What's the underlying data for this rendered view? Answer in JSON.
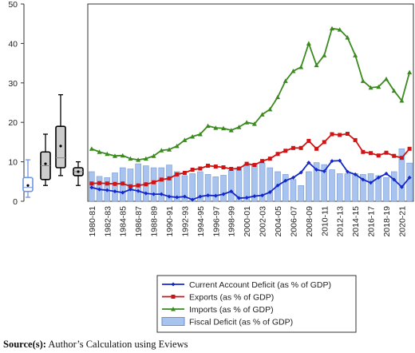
{
  "chart_data": {
    "type": "bar-line",
    "categories": [
      "1980-81",
      null,
      "1982-83",
      null,
      "1984-85",
      null,
      "1986-87",
      null,
      "1988-89",
      null,
      "1990-91",
      null,
      "1992-93",
      null,
      "1994-95",
      null,
      "1996-97",
      null,
      "1998-99",
      null,
      "2000-01",
      null,
      "2002-03",
      null,
      "2004-05",
      null,
      "2006-07",
      null,
      "2008-09",
      null,
      "2010-11",
      null,
      "2012-13",
      null,
      "2014-15",
      null,
      "2016-17",
      null,
      "2018-19",
      null,
      "2020-21",
      null
    ],
    "series": [
      {
        "name": "Current Account Deficit (as % of GDP)",
        "type": "line",
        "marker": "diamond",
        "color": "#1428c8",
        "values": [
          3.5,
          3,
          2.8,
          2.5,
          2.2,
          3,
          2.6,
          2,
          1.8,
          1.8,
          1.2,
          1,
          1.2,
          0.4,
          1.2,
          1.5,
          1.4,
          1.8,
          2.5,
          0.8,
          0.9,
          1.3,
          1.5,
          2.3,
          4,
          5.2,
          6,
          7.3,
          9.8,
          8,
          7.6,
          10.2,
          10.3,
          7.5,
          6.8,
          5.5,
          4.7,
          6,
          7,
          5.5,
          3.6,
          6
        ]
      },
      {
        "name": "Exports (as % of GDP)",
        "type": "line",
        "marker": "square",
        "color": "#d01414",
        "values": [
          4.5,
          4.6,
          4.5,
          4.4,
          4.5,
          3.8,
          4,
          4.3,
          4.8,
          5.5,
          5.8,
          6.8,
          7.2,
          8,
          8.3,
          9,
          8.8,
          8.6,
          8.2,
          8.3,
          9.5,
          9.2,
          10.2,
          10.8,
          12,
          12.8,
          13.5,
          13.5,
          15.3,
          13.3,
          15,
          17,
          16.8,
          17.1,
          15.5,
          12.5,
          12.2,
          11.6,
          12.3,
          11.5,
          11,
          13.3
        ]
      },
      {
        "name": "Imports (as % of GDP)",
        "type": "line",
        "marker": "triangle",
        "color": "#3a8a1e",
        "values": [
          13.3,
          12.5,
          12,
          11.5,
          11.6,
          10.8,
          10.5,
          10.8,
          11.5,
          12.9,
          13.1,
          14,
          15.5,
          16.4,
          17,
          19.1,
          18.6,
          18.5,
          18,
          18.8,
          20,
          19.6,
          22,
          23.3,
          26.4,
          30.5,
          33,
          34,
          40,
          34.5,
          37,
          43.8,
          43.5,
          41.5,
          37,
          30.5,
          28.8,
          29,
          31,
          28,
          25.5,
          32.7
        ]
      },
      {
        "name": "Fiscal Deficit (as % of GDP)",
        "type": "bar",
        "color": "#a9c3ef",
        "values": [
          7.5,
          6.3,
          6,
          7.2,
          8.5,
          8.2,
          9.5,
          9,
          8.5,
          8.5,
          9.2,
          7.5,
          6.5,
          7,
          7.5,
          6.8,
          6.2,
          6.6,
          7.8,
          8.5,
          9.5,
          9.3,
          9.7,
          8.5,
          7.5,
          6.8,
          5.5,
          4,
          7.5,
          9.8,
          9.3,
          8,
          7,
          7,
          7,
          6.8,
          7,
          6.5,
          6,
          7.5,
          13.3,
          9.7
        ]
      }
    ],
    "boxplots": [
      {
        "color": "#6f96e0",
        "min": 1,
        "q1": 2.5,
        "median": 3.5,
        "q3": 6,
        "max": 10.5,
        "mean": 4
      },
      {
        "color": "#000000",
        "min": 4,
        "q1": 5.5,
        "median": 9,
        "q3": 12.5,
        "max": 17,
        "mean": 9.5
      },
      {
        "color": "#000000",
        "min": 6.5,
        "q1": 8.5,
        "median": 11,
        "q3": 19,
        "max": 27,
        "mean": 14
      },
      {
        "color": "#000000",
        "min": 4,
        "q1": 6.5,
        "median": 7.5,
        "q3": 8.5,
        "max": 10,
        "mean": 7.5
      }
    ],
    "ylim": [
      0,
      50
    ],
    "yticks": [
      0,
      10,
      20,
      30,
      40,
      50
    ],
    "source_label": "Source(s):",
    "source_text": "Author’s Calculation using Eviews"
  }
}
